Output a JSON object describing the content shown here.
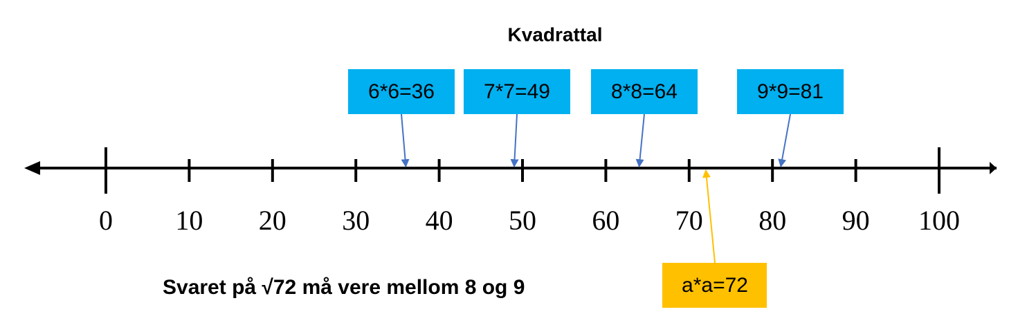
{
  "title": "Kvadrattal",
  "number_line": {
    "min": 0,
    "max": 100,
    "ticks": [
      0,
      10,
      20,
      30,
      40,
      50,
      60,
      70,
      80,
      90,
      100
    ],
    "major_ticks": [
      0,
      100
    ]
  },
  "squares": [
    {
      "label": "6*6=36",
      "value": 36
    },
    {
      "label": "7*7=49",
      "value": 49
    },
    {
      "label": "8*8=64",
      "value": 64
    },
    {
      "label": "9*9=81",
      "value": 81
    }
  ],
  "target": {
    "label": "a*a=72",
    "value": 72
  },
  "conclusion": "Svaret på √72 må vere mellom 8 og 9"
}
